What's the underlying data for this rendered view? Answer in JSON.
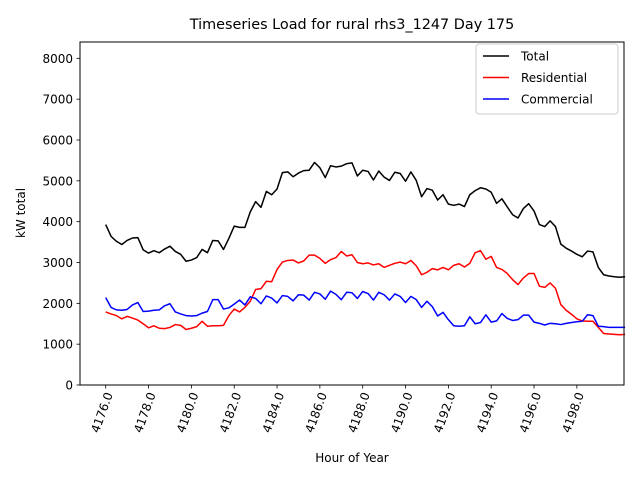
{
  "chart_data": {
    "type": "line",
    "title": "Timeseries Load for rural rhs3_1247  Day 175",
    "xlabel": "Hour of Year",
    "ylabel": "kW total",
    "xlim": [
      4174.8,
      4200.2
    ],
    "ylim": [
      0,
      8400
    ],
    "x_ticks": [
      4176,
      4178,
      4180,
      4182,
      4184,
      4186,
      4188,
      4190,
      4192,
      4194,
      4196,
      4198
    ],
    "x_tick_labels": [
      "4176.0",
      "4178.0",
      "4180.0",
      "4182.0",
      "4184.0",
      "4186.0",
      "4188.0",
      "4190.0",
      "4192.0",
      "4194.0",
      "4196.0",
      "4198.0"
    ],
    "y_ticks": [
      0,
      1000,
      2000,
      3000,
      4000,
      5000,
      6000,
      7000,
      8000
    ],
    "y_tick_labels": [
      "0",
      "1000",
      "2000",
      "3000",
      "4000",
      "5000",
      "6000",
      "7000",
      "8000"
    ],
    "grid": false,
    "legend_position": "top-right",
    "x_start": 4176,
    "x_step": 0.25,
    "series": [
      {
        "name": "Total",
        "color": "#000000",
        "values": [
          3930,
          3640,
          3520,
          3440,
          3540,
          3600,
          3610,
          3310,
          3230,
          3290,
          3240,
          3330,
          3400,
          3270,
          3200,
          3030,
          3060,
          3120,
          3320,
          3240,
          3540,
          3530,
          3320,
          3590,
          3890,
          3860,
          3860,
          4240,
          4490,
          4350,
          4740,
          4660,
          4800,
          5200,
          5220,
          5100,
          5190,
          5250,
          5260,
          5450,
          5320,
          5080,
          5370,
          5340,
          5360,
          5420,
          5440,
          5120,
          5260,
          5230,
          5020,
          5240,
          5090,
          5010,
          5210,
          5180,
          4990,
          5220,
          5010,
          4610,
          4810,
          4770,
          4530,
          4660,
          4430,
          4400,
          4430,
          4370,
          4660,
          4760,
          4830,
          4800,
          4720,
          4450,
          4560,
          4360,
          4170,
          4090,
          4320,
          4440,
          4260,
          3930,
          3880,
          4020,
          3880,
          3450,
          3350,
          3280,
          3200,
          3140,
          3280,
          3260,
          2880,
          2700,
          2670,
          2650,
          2640,
          2650
        ]
      },
      {
        "name": "Residential",
        "color": "#ff0000",
        "values": [
          1790,
          1740,
          1700,
          1620,
          1680,
          1640,
          1590,
          1500,
          1400,
          1450,
          1390,
          1380,
          1410,
          1480,
          1460,
          1360,
          1390,
          1430,
          1560,
          1440,
          1450,
          1450,
          1460,
          1700,
          1860,
          1790,
          1900,
          2050,
          2340,
          2360,
          2540,
          2530,
          2830,
          3010,
          3050,
          3060,
          2990,
          3040,
          3180,
          3180,
          3100,
          2980,
          3070,
          3120,
          3270,
          3160,
          3190,
          3000,
          2970,
          2990,
          2940,
          2970,
          2880,
          2930,
          2980,
          3010,
          2970,
          3050,
          2920,
          2700,
          2760,
          2850,
          2820,
          2880,
          2820,
          2930,
          2970,
          2890,
          2980,
          3240,
          3290,
          3080,
          3150,
          2880,
          2830,
          2730,
          2580,
          2460,
          2620,
          2730,
          2730,
          2420,
          2390,
          2500,
          2370,
          1970,
          1830,
          1730,
          1620,
          1570,
          1560,
          1560,
          1410,
          1260,
          1250,
          1240,
          1230,
          1240
        ]
      },
      {
        "name": "Commercial",
        "color": "#0000ff",
        "values": [
          2140,
          1900,
          1840,
          1830,
          1850,
          1960,
          2020,
          1800,
          1810,
          1830,
          1840,
          1940,
          1990,
          1790,
          1740,
          1700,
          1690,
          1700,
          1760,
          1800,
          2090,
          2090,
          1860,
          1890,
          1980,
          2080,
          1960,
          2160,
          2120,
          1990,
          2180,
          2130,
          2010,
          2190,
          2170,
          2060,
          2210,
          2200,
          2080,
          2270,
          2230,
          2100,
          2300,
          2220,
          2090,
          2270,
          2260,
          2120,
          2290,
          2240,
          2080,
          2270,
          2210,
          2080,
          2230,
          2170,
          2020,
          2170,
          2090,
          1900,
          2050,
          1920,
          1690,
          1780,
          1600,
          1450,
          1440,
          1450,
          1670,
          1500,
          1530,
          1720,
          1540,
          1570,
          1750,
          1630,
          1580,
          1600,
          1710,
          1710,
          1540,
          1510,
          1470,
          1510,
          1500,
          1480,
          1510,
          1530,
          1550,
          1560,
          1720,
          1700,
          1440,
          1430,
          1410,
          1410,
          1410,
          1410
        ]
      }
    ]
  }
}
